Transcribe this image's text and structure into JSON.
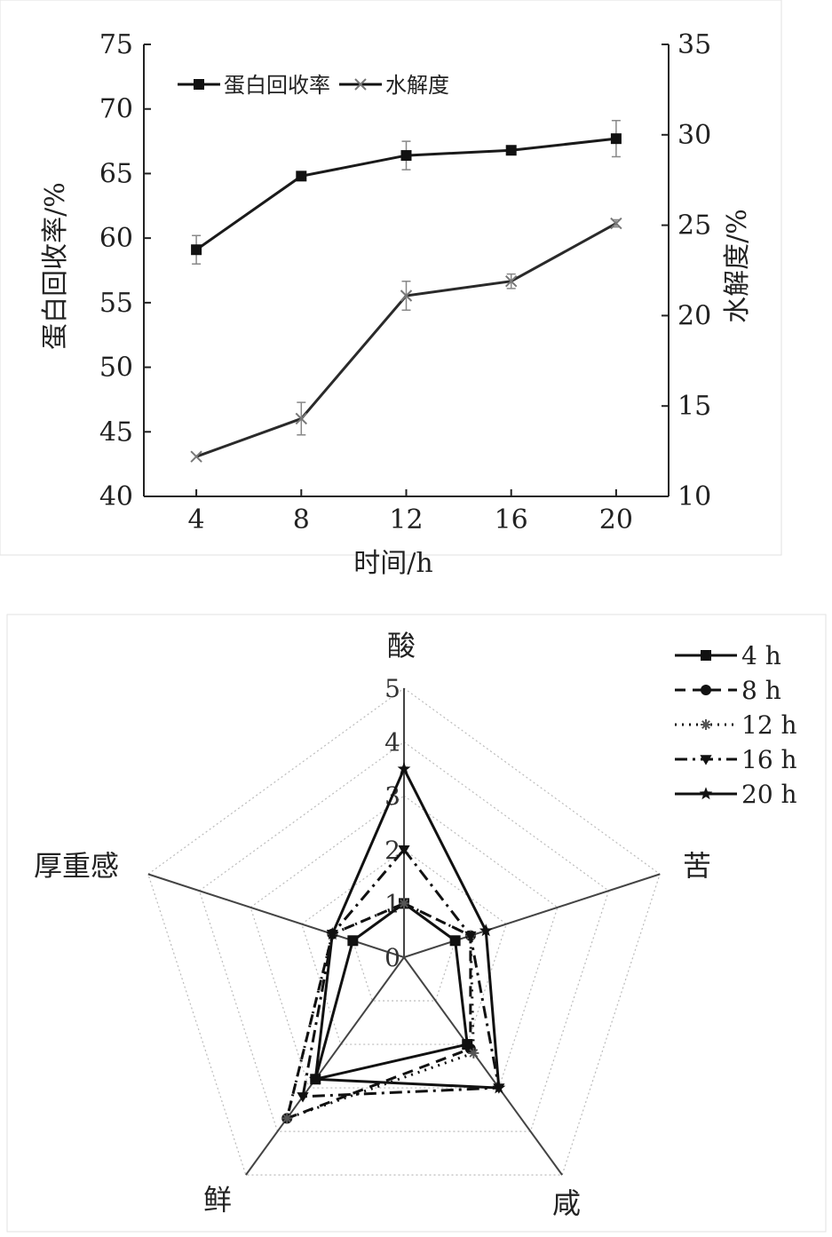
{
  "chart_data": [
    {
      "type": "line",
      "title": "",
      "xlabel": "时间/h",
      "ylabel": "蛋白回收率/%",
      "y2label": "水解度/%",
      "x": [
        4,
        8,
        12,
        16,
        20
      ],
      "x_ticks": [
        "4",
        "8",
        "12",
        "16",
        "20"
      ],
      "ylim": [
        40,
        75
      ],
      "y_ticks": [
        "40",
        "45",
        "50",
        "55",
        "60",
        "65",
        "70",
        "75"
      ],
      "y2lim": [
        10,
        35
      ],
      "y2_ticks": [
        "10",
        "15",
        "20",
        "25",
        "30",
        "35"
      ],
      "legend_position": "top-left",
      "series": [
        {
          "name": "蛋白回收率",
          "axis": "left",
          "marker": "square",
          "values": [
            59.1,
            64.8,
            66.4,
            66.8,
            67.7
          ],
          "errors": [
            1.1,
            0,
            1.1,
            0,
            1.4
          ]
        },
        {
          "name": "水解度",
          "axis": "right",
          "marker": "x",
          "values": [
            12.2,
            14.3,
            21.1,
            21.9,
            25.1
          ],
          "errors": [
            0,
            0.9,
            0.8,
            0.4,
            0.2
          ]
        }
      ]
    },
    {
      "type": "radar",
      "title": "",
      "axes": [
        "酸",
        "苦",
        "咸",
        "鲜",
        "厚重感"
      ],
      "rlim": [
        0,
        5
      ],
      "r_ticks": [
        "0",
        "1",
        "2",
        "3",
        "4",
        "5"
      ],
      "legend_position": "top-right",
      "series": [
        {
          "name": "4 h",
          "marker": "square",
          "dash": "solid",
          "values": [
            1.0,
            1.0,
            2.0,
            2.8,
            1.0
          ]
        },
        {
          "name": "8 h",
          "marker": "circle",
          "dash": "dashed",
          "values": [
            1.0,
            1.3,
            2.1,
            3.7,
            1.4
          ]
        },
        {
          "name": "12 h",
          "marker": "asterisk",
          "dash": "dotted",
          "values": [
            1.0,
            1.3,
            2.2,
            3.7,
            1.4
          ]
        },
        {
          "name": "16 h",
          "marker": "triangle-down",
          "dash": "dashdot",
          "values": [
            2.0,
            1.3,
            3.0,
            3.2,
            1.4
          ]
        },
        {
          "name": "20 h",
          "marker": "star",
          "dash": "solid",
          "values": [
            3.5,
            1.6,
            3.0,
            2.8,
            1.4
          ]
        }
      ]
    }
  ]
}
